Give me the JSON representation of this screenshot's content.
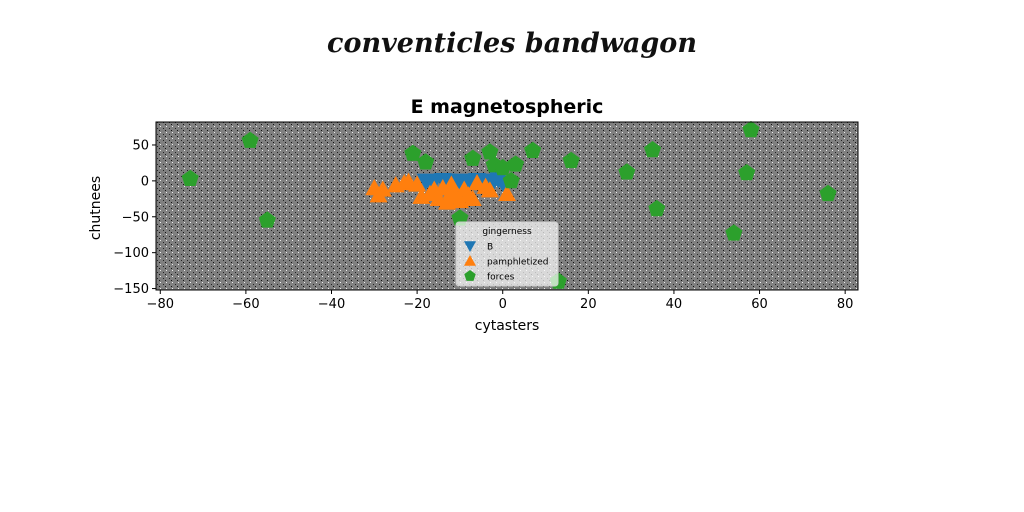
{
  "suptitle": "conventicles bandwagon",
  "chart_data": {
    "type": "scatter",
    "title": "E magnetospheric",
    "xlabel": "cytasters",
    "ylabel": "chutnees",
    "xlim": [
      -81,
      83
    ],
    "ylim": [
      -152,
      82
    ],
    "xticks": [
      -80,
      -60,
      -40,
      -20,
      0,
      20,
      40,
      60,
      80
    ],
    "yticks": [
      50,
      0,
      -50,
      -100,
      -150
    ],
    "xtick_labels": [
      "−80",
      "−60",
      "−40",
      "−20",
      "0",
      "20",
      "40",
      "60",
      "80"
    ],
    "ytick_labels": [
      "50",
      "0",
      "−50",
      "−100",
      "−150"
    ],
    "grid": false,
    "axes_background": "#808080",
    "legend": {
      "title": "gingerness",
      "placement": "lower-center"
    },
    "series": [
      {
        "name": "B",
        "marker": "triangle-down",
        "color": "#1f77b4",
        "points": [
          [
            -18,
            0
          ],
          [
            -16,
            -1
          ],
          [
            -14,
            1
          ],
          [
            -12,
            -2
          ],
          [
            -10,
            0
          ],
          [
            -8,
            -1
          ],
          [
            -6,
            1
          ],
          [
            -4,
            -1
          ],
          [
            -2,
            0
          ],
          [
            0,
            -3
          ],
          [
            -17,
            -3
          ],
          [
            -11,
            -4
          ],
          [
            -5,
            -3
          ],
          [
            -1,
            2
          ],
          [
            -13,
            0
          ]
        ]
      },
      {
        "name": "pamphletized",
        "marker": "triangle-up",
        "color": "#ff7f0e",
        "points": [
          [
            -30,
            -10
          ],
          [
            -28,
            -12
          ],
          [
            -29,
            -20
          ],
          [
            -23,
            -3
          ],
          [
            -22,
            -1
          ],
          [
            -20,
            -5
          ],
          [
            -19,
            -22
          ],
          [
            -17,
            -18
          ],
          [
            -15,
            -25
          ],
          [
            -14,
            -10
          ],
          [
            -13,
            -30
          ],
          [
            -12,
            -15
          ],
          [
            -11,
            -22
          ],
          [
            -10,
            -28
          ],
          [
            -9,
            -12
          ],
          [
            -8,
            -20
          ],
          [
            -7,
            -25
          ],
          [
            -6,
            -3
          ],
          [
            -4,
            -8
          ],
          [
            -3,
            -13
          ],
          [
            1,
            -18
          ],
          [
            -16,
            -12
          ],
          [
            -25,
            -6
          ],
          [
            -12,
            -5
          ]
        ]
      },
      {
        "name": "forces",
        "marker": "pentagon",
        "color": "#2ca02c",
        "points": [
          [
            -73,
            3
          ],
          [
            -59,
            56
          ],
          [
            -55,
            -55
          ],
          [
            -21,
            38
          ],
          [
            -18,
            26
          ],
          [
            -10,
            -52
          ],
          [
            -7,
            31
          ],
          [
            -3,
            40
          ],
          [
            -2,
            22
          ],
          [
            0,
            18
          ],
          [
            3,
            23
          ],
          [
            2,
            0
          ],
          [
            7,
            42
          ],
          [
            13,
            -140
          ],
          [
            16,
            28
          ],
          [
            29,
            12
          ],
          [
            35,
            43
          ],
          [
            36,
            -39
          ],
          [
            54,
            -73
          ],
          [
            57,
            11
          ],
          [
            58,
            71
          ],
          [
            76,
            -18
          ]
        ]
      }
    ]
  }
}
